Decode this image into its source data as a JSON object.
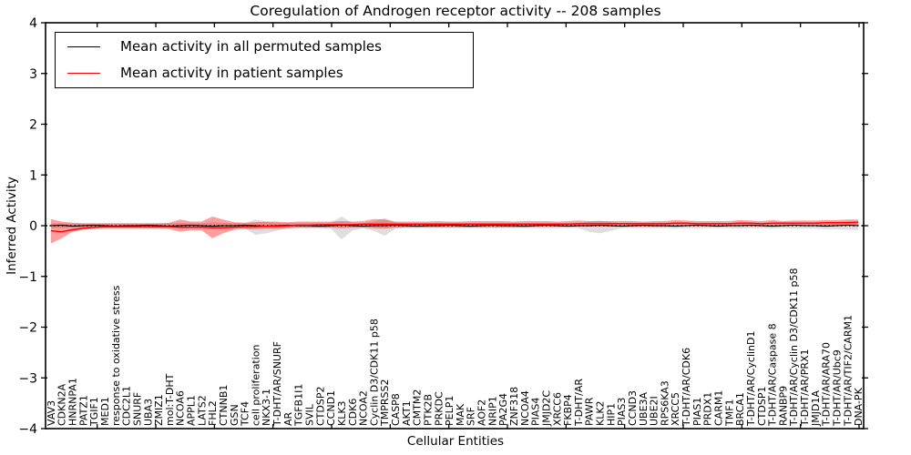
{
  "chart_data": {
    "type": "line",
    "title": "Coregulation of Androgen receptor activity -- 208 samples",
    "xlabel": "Cellular Entities",
    "ylabel": "Inferred Activity",
    "ylim": [
      -4,
      4
    ],
    "yticks": [
      {
        "value": 4,
        "label": "4"
      },
      {
        "value": 3,
        "label": "3"
      },
      {
        "value": 2,
        "label": "2"
      },
      {
        "value": 1,
        "label": "1"
      },
      {
        "value": 0,
        "label": "0"
      },
      {
        "value": -1,
        "label": "−1"
      },
      {
        "value": -2,
        "label": "−2"
      },
      {
        "value": -3,
        "label": "−3"
      },
      {
        "value": -4,
        "label": "−4"
      }
    ],
    "zero_line": {
      "y": 0,
      "style": "dotted",
      "color": "#000000"
    },
    "legend": [
      {
        "label": "Mean activity in all permuted samples",
        "color": "#000000"
      },
      {
        "label": "Mean activity in patient samples",
        "color": "#ff0000"
      }
    ],
    "categories": [
      "VAV3",
      "CDKN2A",
      "HNRNPA1",
      "PATZ1",
      "TGIF1",
      "MED1",
      "response to oxidative stress",
      "CDC2L1",
      "SNURF",
      "UBA3",
      "ZMIZ1",
      "mol:T-DHT",
      "NCOA6",
      "APPL1",
      "LATS2",
      "FHL2",
      "CTNNB1",
      "GSN",
      "TCF4",
      "cell proliferation",
      "NKX3-1",
      "T-DHT/AR/SNURF",
      "AR",
      "TGFB1I1",
      "SVIL",
      "CTDSP2",
      "CCND1",
      "KLK3",
      "CDK6",
      "NCOA2",
      "Cyclin D3/CDK11 p58",
      "TMPRSS2",
      "CASP8",
      "AKT1",
      "CMTM2",
      "PTK2B",
      "PRKDC",
      "PELP1",
      "MAK",
      "SRF",
      "AOF2",
      "NRIP1",
      "PA2G4",
      "ZNF318",
      "NCOA4",
      "PIAS4",
      "JMJD2C",
      "XRCC6",
      "FKBP4",
      "T-DHT/AR",
      "PAWR",
      "KLK2",
      "HIP1",
      "PIAS3",
      "CCND3",
      "UBE3A",
      "UBE2I",
      "RPS6KA3",
      "XRCC5",
      "T-DHT/AR/CDK6",
      "PIAS1",
      "PRDX1",
      "CARM1",
      "TMF1",
      "BRCA1",
      "T-DHT/AR/CyclinD1",
      "CTDSP1",
      "T-DHT/AR/Caspase 8",
      "RANBP9",
      "T-DHT/AR/Cyclin D3/CDK11 p58",
      "T-DHT/AR/PRX1",
      "JMJD1A",
      "T-DHT/AR/ARA70",
      "T-DHT/AR/Ubc9",
      "T-DHT/AR/TIF2/CARM1",
      "DNA-PK"
    ],
    "series": [
      {
        "name": "Mean activity in all permuted samples",
        "color": "#000000",
        "values": [
          0.0,
          0.01,
          -0.01,
          0.0,
          0.01,
          0.0,
          -0.01,
          0.0,
          0.0,
          0.01,
          0.0,
          -0.01,
          0.0,
          0.01,
          0.0,
          -0.01,
          0.0,
          0.0,
          0.01,
          0.0,
          -0.01,
          0.0,
          0.01,
          0.0,
          0.0,
          -0.01,
          0.0,
          0.01,
          0.0,
          -0.01,
          0.0,
          0.0,
          0.01,
          0.0,
          -0.01,
          0.0,
          0.0,
          0.01,
          0.0,
          -0.01,
          0.0,
          0.01,
          0.0,
          0.0,
          -0.01,
          0.0,
          0.01,
          0.0,
          -0.01,
          0.0,
          0.0,
          0.01,
          0.0,
          -0.01,
          0.0,
          0.01,
          0.0,
          0.0,
          -0.01,
          0.0,
          0.01,
          0.0,
          -0.01,
          0.0,
          0.0,
          0.01,
          0.0,
          -0.01,
          0.0,
          0.01,
          0.0,
          0.0,
          -0.01,
          0.0,
          0.01,
          0.0
        ]
      },
      {
        "name": "Mean activity in patient samples",
        "color": "#ff0000",
        "values": [
          -0.1,
          -0.12,
          -0.08,
          -0.05,
          -0.03,
          -0.02,
          -0.02,
          -0.02,
          -0.02,
          -0.02,
          -0.02,
          -0.02,
          -0.03,
          -0.03,
          -0.03,
          -0.04,
          -0.04,
          -0.03,
          -0.02,
          -0.02,
          -0.01,
          -0.01,
          0.0,
          0.01,
          0.01,
          0.02,
          0.02,
          0.02,
          0.02,
          0.03,
          0.03,
          0.03,
          0.03,
          0.03,
          0.03,
          0.03,
          0.03,
          0.03,
          0.03,
          0.03,
          0.03,
          0.03,
          0.03,
          0.03,
          0.03,
          0.03,
          0.03,
          0.03,
          0.03,
          0.04,
          0.04,
          0.04,
          0.04,
          0.04,
          0.04,
          0.04,
          0.04,
          0.04,
          0.05,
          0.05,
          0.04,
          0.04,
          0.04,
          0.04,
          0.05,
          0.05,
          0.04,
          0.05,
          0.05,
          0.05,
          0.05,
          0.05,
          0.06,
          0.06,
          0.06,
          0.07
        ]
      }
    ],
    "bands": [
      {
        "name": "permuted-band",
        "fill": "rgba(0,0,0,0.13)",
        "upper": [
          0.05,
          0.05,
          0.04,
          0.04,
          0.04,
          0.04,
          0.04,
          0.04,
          0.04,
          0.04,
          0.04,
          0.05,
          0.06,
          0.05,
          0.05,
          0.07,
          0.06,
          0.05,
          0.05,
          0.12,
          0.08,
          0.06,
          0.05,
          0.05,
          0.05,
          0.05,
          0.06,
          0.18,
          0.06,
          0.05,
          0.08,
          0.15,
          0.06,
          0.05,
          0.05,
          0.05,
          0.05,
          0.05,
          0.05,
          0.05,
          0.05,
          0.05,
          0.05,
          0.05,
          0.05,
          0.05,
          0.05,
          0.05,
          0.05,
          0.05,
          0.08,
          0.1,
          0.07,
          0.05,
          0.05,
          0.05,
          0.05,
          0.05,
          0.06,
          0.05,
          0.05,
          0.05,
          0.05,
          0.05,
          0.06,
          0.05,
          0.05,
          0.06,
          0.05,
          0.06,
          0.06,
          0.06,
          0.07,
          0.07,
          0.08,
          0.08
        ],
        "lower": [
          -0.05,
          -0.05,
          -0.04,
          -0.04,
          -0.04,
          -0.04,
          -0.04,
          -0.04,
          -0.04,
          -0.04,
          -0.04,
          -0.05,
          -0.06,
          -0.05,
          -0.05,
          -0.07,
          -0.06,
          -0.05,
          -0.05,
          -0.18,
          -0.15,
          -0.1,
          -0.05,
          -0.05,
          -0.05,
          -0.05,
          -0.06,
          -0.27,
          -0.1,
          -0.05,
          -0.1,
          -0.2,
          -0.06,
          -0.05,
          -0.05,
          -0.05,
          -0.05,
          -0.05,
          -0.05,
          -0.05,
          -0.05,
          -0.05,
          -0.05,
          -0.05,
          -0.05,
          -0.05,
          -0.05,
          -0.05,
          -0.05,
          -0.05,
          -0.12,
          -0.15,
          -0.1,
          -0.05,
          -0.05,
          -0.05,
          -0.05,
          -0.05,
          -0.06,
          -0.05,
          -0.05,
          -0.05,
          -0.05,
          -0.05,
          -0.06,
          -0.05,
          -0.05,
          -0.06,
          -0.05,
          -0.06,
          -0.06,
          -0.06,
          -0.07,
          -0.07,
          -0.08,
          -0.08
        ]
      },
      {
        "name": "patient-band",
        "fill": "rgba(255,0,0,0.38)",
        "upper": [
          0.13,
          0.08,
          0.06,
          0.05,
          0.05,
          0.05,
          0.05,
          0.05,
          0.05,
          0.05,
          0.05,
          0.06,
          0.12,
          0.08,
          0.08,
          0.18,
          0.12,
          0.07,
          0.06,
          0.07,
          0.08,
          0.08,
          0.07,
          0.08,
          0.08,
          0.08,
          0.08,
          0.09,
          0.08,
          0.09,
          0.13,
          0.12,
          0.08,
          0.08,
          0.08,
          0.08,
          0.09,
          0.08,
          0.08,
          0.09,
          0.09,
          0.09,
          0.09,
          0.08,
          0.09,
          0.09,
          0.09,
          0.08,
          0.09,
          0.1,
          0.09,
          0.09,
          0.09,
          0.09,
          0.09,
          0.08,
          0.09,
          0.09,
          0.11,
          0.1,
          0.09,
          0.09,
          0.09,
          0.09,
          0.11,
          0.1,
          0.09,
          0.11,
          0.09,
          0.1,
          0.1,
          0.1,
          0.11,
          0.11,
          0.12,
          0.12
        ],
        "lower": [
          -0.35,
          -0.25,
          -0.12,
          -0.08,
          -0.07,
          -0.06,
          -0.06,
          -0.06,
          -0.06,
          -0.06,
          -0.06,
          -0.07,
          -0.12,
          -0.09,
          -0.09,
          -0.25,
          -0.15,
          -0.08,
          -0.07,
          -0.07,
          -0.06,
          -0.06,
          -0.05,
          -0.04,
          -0.04,
          -0.04,
          -0.04,
          -0.05,
          -0.04,
          -0.04,
          -0.05,
          -0.06,
          -0.04,
          -0.03,
          -0.03,
          -0.03,
          -0.03,
          -0.03,
          -0.03,
          -0.03,
          -0.03,
          -0.03,
          -0.03,
          -0.03,
          -0.03,
          -0.02,
          -0.02,
          -0.02,
          -0.02,
          -0.02,
          -0.02,
          -0.02,
          -0.02,
          -0.02,
          -0.02,
          -0.02,
          -0.02,
          -0.02,
          -0.01,
          -0.01,
          -0.01,
          -0.01,
          -0.01,
          -0.01,
          -0.01,
          -0.01,
          -0.01,
          -0.01,
          -0.01,
          0.0,
          0.0,
          0.0,
          0.0,
          0.0,
          0.01,
          0.01
        ]
      }
    ]
  }
}
